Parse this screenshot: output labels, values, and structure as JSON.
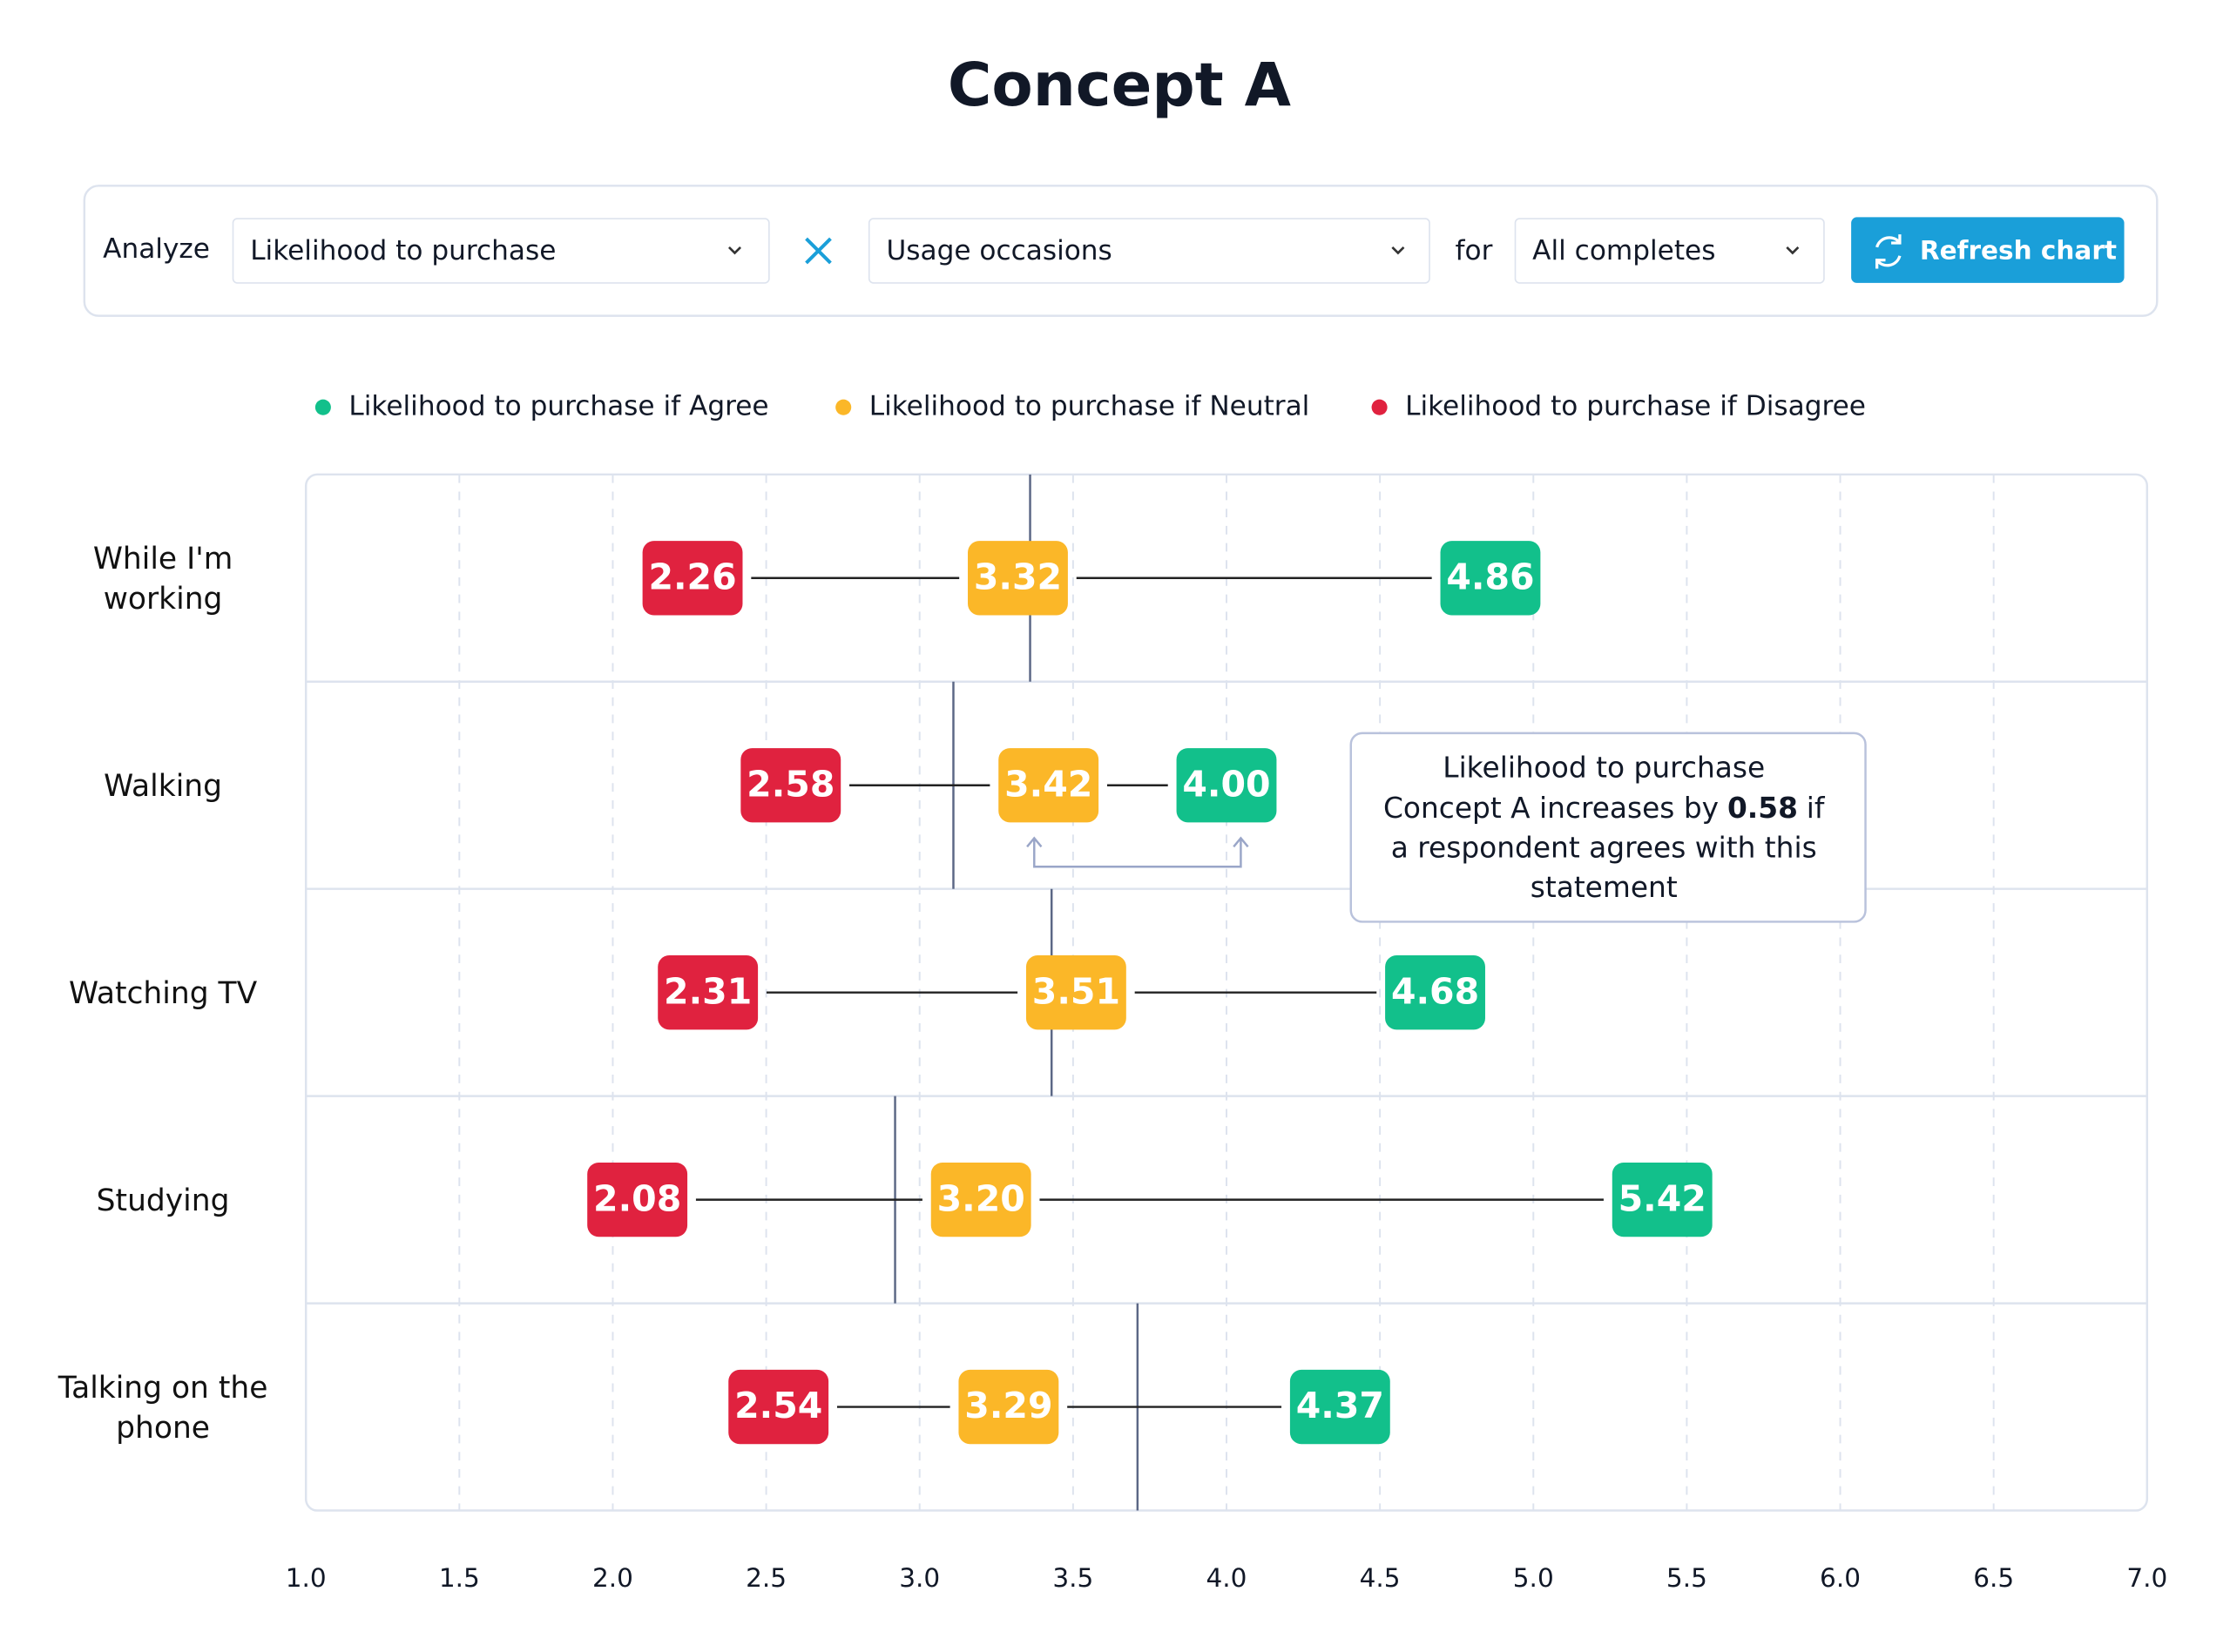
{
  "title": "Concept A",
  "controls": {
    "analyze_label": "Analyze",
    "metric": "Likelihood to purchase",
    "breakdown": "Usage occasions",
    "for_label": "for",
    "audience": "All completes",
    "button": "Refresh chart"
  },
  "chart_data": {
    "type": "dumbbell",
    "categories": [
      "While I'm working",
      "Walking",
      "Watching TV",
      "Studying",
      "Talking on the phone"
    ],
    "series": [
      {
        "name": "Likelihood to purchase if Agree",
        "color": "#12c08b",
        "values": [
          4.86,
          4.0,
          4.68,
          5.42,
          4.37
        ],
        "value_labels": [
          "4.86",
          "4.00",
          "4.68",
          "5.42",
          "4.37"
        ]
      },
      {
        "name": "Likelihood to purchase if Neutral",
        "color": "#fbb728",
        "values": [
          3.32,
          3.42,
          3.51,
          3.2,
          3.29
        ],
        "value_labels": [
          "3.32",
          "3.42",
          "3.51",
          "3.20",
          "3.29"
        ]
      },
      {
        "name": "Likelihood to purchase if Disagree",
        "color": "#e0223f",
        "values": [
          2.26,
          2.58,
          2.31,
          2.08,
          2.54
        ],
        "value_labels": [
          "2.26",
          "2.58",
          "2.31",
          "2.08",
          "2.54"
        ]
      }
    ],
    "reference_values": [
      3.36,
      3.11,
      3.43,
      2.92,
      3.71
    ],
    "xlim": [
      1.0,
      7.0
    ],
    "xticks": [
      {
        "value": 1.0,
        "label": "1.0"
      },
      1.5,
      {
        "value": 2.0,
        "label": "2.0"
      },
      2.5,
      {
        "value": 3.0,
        "label": "3.0"
      },
      3.5,
      {
        "value": 4.0,
        "label": "4.0"
      },
      4.5,
      {
        "value": 5.0,
        "label": "5.0"
      },
      5.5,
      {
        "value": 6.0,
        "label": "6.0"
      },
      6.5,
      {
        "value": 7.0,
        "label": "7.0"
      }
    ],
    "grid": true,
    "legend": "top",
    "annotation": {
      "line1": "Likelihood to purchase",
      "line2_before": "Concept A increases by",
      "line2_value": "0.58",
      "line2_after": "if",
      "line3": "a respondent agrees with this",
      "line4": "statement"
    }
  }
}
